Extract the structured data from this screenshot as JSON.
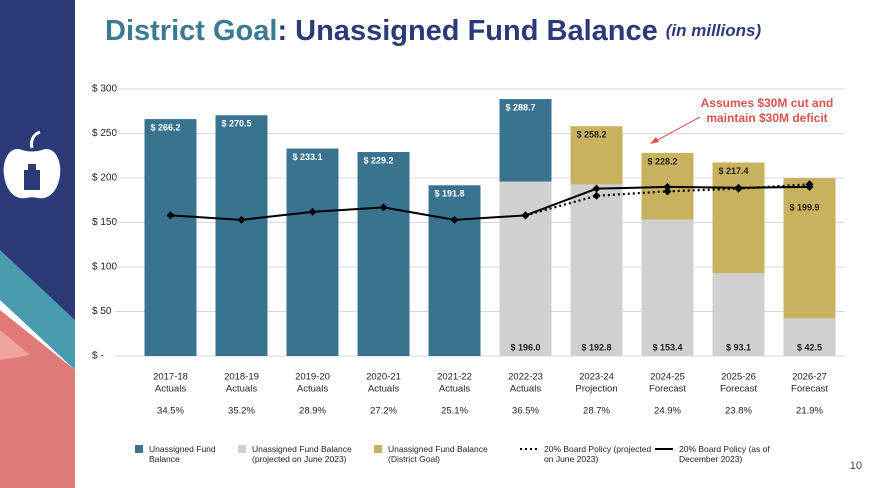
{
  "chart_data": {
    "type": "bar",
    "title_parts": [
      "District Goal",
      ": Unassigned Fund Balance",
      "(in millions)"
    ],
    "categories": [
      [
        "2017-18",
        "Actuals"
      ],
      [
        "2018-19",
        "Actuals"
      ],
      [
        "2019-20",
        "Actuals"
      ],
      [
        "2020-21",
        "Actuals"
      ],
      [
        "2021-22",
        "Actuals"
      ],
      [
        "2022-23",
        "Actuals"
      ],
      [
        "2023-24",
        "Projection"
      ],
      [
        "2024-25",
        "Forecast"
      ],
      [
        "2025-26",
        "Forecast"
      ],
      [
        "2026-27",
        "Forecast"
      ]
    ],
    "category_notes": [
      "34.5%",
      "35.2%",
      "28.9%",
      "27.2%",
      "25.1%",
      "36.5%",
      "28.7%",
      "24.9%",
      "23.8%",
      "21.9%"
    ],
    "ylim": [
      0,
      300
    ],
    "yticks": [
      {
        "value": 0,
        "label": "$ -"
      },
      {
        "value": 50,
        "label": "$ 50"
      },
      {
        "value": 100,
        "label": "$ 100"
      },
      {
        "value": 150,
        "label": "$ 150"
      },
      {
        "value": 200,
        "label": "$ 200"
      },
      {
        "value": 250,
        "label": "$ 250"
      },
      {
        "value": 300,
        "label": "$ 300"
      }
    ],
    "grid": true,
    "series": [
      {
        "name": "Unassigned Fund Balance",
        "type": "bar",
        "color": "#3a7390",
        "label_position": "top",
        "label_color": "#ffffff",
        "values": [
          266.2,
          270.5,
          233.1,
          229.2,
          191.8,
          288.7,
          null,
          null,
          null,
          null
        ],
        "value_labels": [
          "$ 266.2",
          "$ 270.5",
          "$ 233.1",
          "$ 229.2",
          "$ 191.8",
          "$ 288.7",
          null,
          null,
          null,
          null
        ]
      },
      {
        "name": "Unassigned Fund Balance (projected on June 2023)",
        "type": "bar",
        "color": "#d0d0d0",
        "label_position": "bottom",
        "label_color": "#222222",
        "values": [
          null,
          null,
          null,
          null,
          null,
          196.0,
          192.8,
          153.4,
          93.1,
          42.5
        ],
        "value_labels": [
          null,
          null,
          null,
          null,
          null,
          "$ 196.0",
          "$ 192.8",
          "$ 153.4",
          "$ 93.1",
          "$ 42.5"
        ]
      },
      {
        "name": "Unassigned Fund Balance (District Goal)",
        "type": "bar",
        "color": "#c9b25e",
        "label_position": "top",
        "label_color": "#222222",
        "values": [
          null,
          null,
          null,
          null,
          null,
          null,
          258.2,
          228.2,
          217.4,
          199.9
        ],
        "value_labels": [
          null,
          null,
          null,
          null,
          null,
          null,
          "$ 258.2",
          "$ 228.2",
          "$ 217.4",
          "$ 199.9"
        ]
      },
      {
        "name": "20% Board Policy (projected on June 2023)",
        "type": "line",
        "dash": true,
        "color": "#000000",
        "values": [
          null,
          null,
          null,
          null,
          null,
          158,
          180,
          185,
          188,
          193
        ]
      },
      {
        "name": "20% Board Policy (as of December 2023)",
        "type": "line",
        "dash": false,
        "color": "#000000",
        "values": [
          158,
          153,
          162,
          167,
          153,
          158,
          188,
          190,
          189,
          190
        ]
      }
    ],
    "annotation": [
      "Assumes $30M cut and",
      "maintain $30M deficit"
    ],
    "annotation_color": "#d9534f",
    "page_number": "10"
  }
}
